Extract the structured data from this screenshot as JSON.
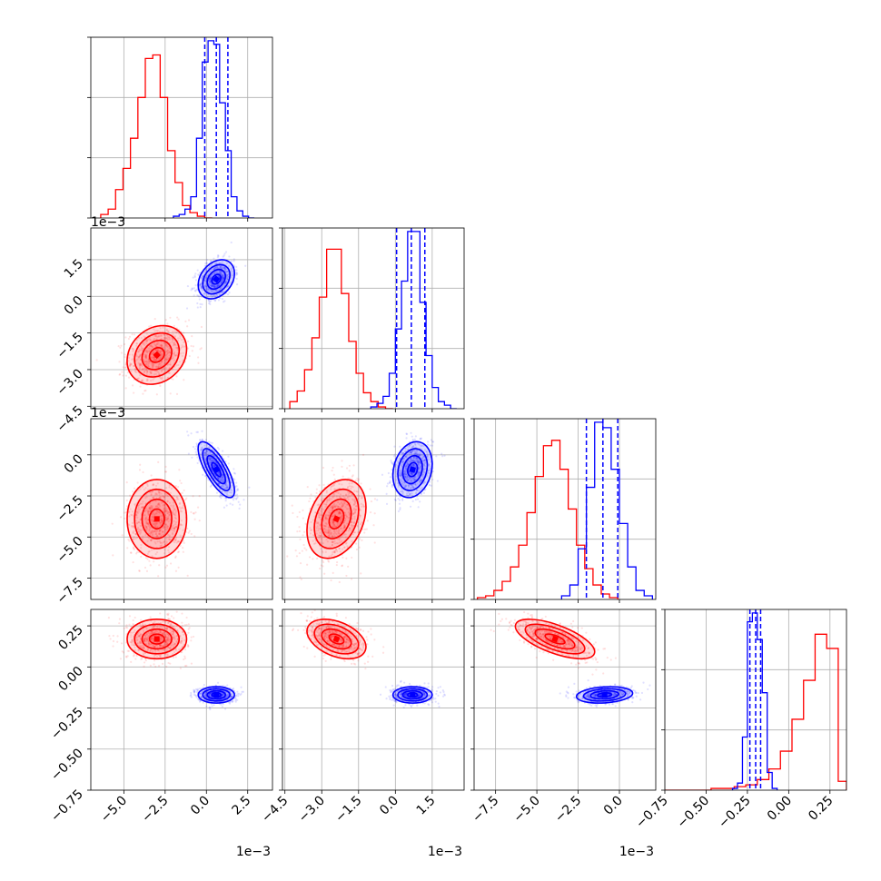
{
  "figure": {
    "type": "corner-plot",
    "params": [
      {
        "range": [
          -7.0,
          4.0
        ],
        "ticks": [
          -5.0,
          -2.5,
          0.0,
          2.5
        ],
        "tick_labels": [
          "−5.0",
          "−2.5",
          "0.0",
          "2.5"
        ],
        "offset_label": "1e−3"
      },
      {
        "range": [
          -4.6,
          2.8
        ],
        "ticks": [
          -4.5,
          -3.0,
          -1.5,
          0.0,
          1.5
        ],
        "tick_labels": [
          "−4.5",
          "−3.0",
          "−1.5",
          "0.0",
          "1.5"
        ],
        "offset_label": "1e−3"
      },
      {
        "range": [
          -8.8,
          2.2
        ],
        "ticks": [
          -7.5,
          -5.0,
          -2.5,
          0.0
        ],
        "tick_labels": [
          "−7.5",
          "−5.0",
          "−2.5",
          "0.0"
        ],
        "offset_label": "1e−3"
      },
      {
        "range": [
          -0.75,
          0.35
        ],
        "ticks": [
          -0.75,
          -0.5,
          -0.25,
          0.0,
          0.25
        ],
        "tick_labels": [
          "−0.75",
          "−0.50",
          "−0.25",
          "0.00",
          "0.25"
        ],
        "offset_label": ""
      }
    ],
    "series_colors": [
      "#ff0000",
      "#0000ff"
    ]
  },
  "chart_data": {
    "type": "corner",
    "series": [
      {
        "color": "#ff0000",
        "mean": [
          -3.0,
          -2.4,
          -3.9,
          0.17
        ],
        "sigma": [
          0.9,
          0.6,
          1.2,
          0.06
        ],
        "corr": [
          [
            0,
            0.2,
            0.0,
            0.0
          ],
          [
            0,
            0,
            0.3,
            -0.4
          ],
          [
            0,
            0,
            0,
            -0.65
          ]
        ],
        "hist": [
          {
            "edges": [
              -6.4,
              -5.95,
              -5.5,
              -5.05,
              -4.6,
              -4.15,
              -3.7,
              -3.25,
              -2.8,
              -2.35,
              -1.9,
              -1.45,
              -1.0,
              -0.55,
              -0.1,
              0.35
            ],
            "counts": [
              0.02,
              0.05,
              0.16,
              0.28,
              0.45,
              0.68,
              0.9,
              0.92,
              0.68,
              0.38,
              0.2,
              0.07,
              0.03,
              0.01,
              0.0
            ]
          },
          {
            "edges": [
              -4.3,
              -4.0,
              -3.7,
              -3.4,
              -3.1,
              -2.8,
              -2.5,
              -2.2,
              -1.9,
              -1.6,
              -1.3,
              -1.0,
              -0.7,
              -0.4,
              -0.1
            ],
            "counts": [
              0.04,
              0.1,
              0.22,
              0.4,
              0.63,
              0.9,
              0.9,
              0.65,
              0.38,
              0.2,
              0.09,
              0.04,
              0.01,
              0.0
            ]
          },
          {
            "edges": [
              -8.6,
              -8.1,
              -7.6,
              -7.1,
              -6.6,
              -6.1,
              -5.6,
              -5.1,
              -4.6,
              -4.1,
              -3.6,
              -3.1,
              -2.6,
              -2.1,
              -1.6,
              -1.1,
              -0.6,
              -0.1
            ],
            "counts": [
              0.01,
              0.02,
              0.05,
              0.1,
              0.18,
              0.3,
              0.48,
              0.68,
              0.85,
              0.88,
              0.72,
              0.5,
              0.3,
              0.17,
              0.08,
              0.03,
              0.01
            ]
          },
          {
            "edges": [
              -0.75,
              -0.68,
              -0.61,
              -0.54,
              -0.47,
              -0.4,
              -0.33,
              -0.26,
              -0.19,
              -0.12,
              -0.05,
              0.02,
              0.09,
              0.16,
              0.23,
              0.3,
              0.35
            ],
            "counts": [
              0.0,
              0.0,
              0.0,
              0.0,
              0.01,
              0.01,
              0.02,
              0.03,
              0.06,
              0.12,
              0.22,
              0.4,
              0.62,
              0.88,
              0.8,
              0.05
            ]
          }
        ]
      },
      {
        "color": "#0000ff",
        "mean": [
          0.6,
          0.7,
          -0.9,
          -0.17
        ],
        "sigma": [
          0.55,
          0.4,
          0.85,
          0.025
        ],
        "corr": [
          [
            0,
            0.3,
            -0.75,
            0.0
          ],
          [
            0,
            0,
            0.2,
            0.0
          ],
          [
            0,
            0,
            0,
            0.2
          ]
        ],
        "quantiles": [
          [
            -0.1,
            0.6,
            1.3
          ],
          [
            0.05,
            0.65,
            1.2
          ],
          [
            -2.0,
            -1.0,
            -0.1
          ],
          [
            -0.235,
            -0.2,
            -0.17
          ]
        ],
        "hist": [
          {
            "edges": [
              -2.0,
              -1.65,
              -1.3,
              -0.95,
              -0.6,
              -0.25,
              0.1,
              0.45,
              0.8,
              1.15,
              1.5,
              1.85,
              2.2,
              2.55,
              2.9
            ],
            "counts": [
              0.01,
              0.02,
              0.05,
              0.12,
              0.45,
              0.88,
              1.0,
              0.98,
              0.65,
              0.38,
              0.12,
              0.04,
              0.01,
              0.0
            ]
          },
          {
            "edges": [
              -1.0,
              -0.75,
              -0.5,
              -0.25,
              0.0,
              0.25,
              0.5,
              0.75,
              1.0,
              1.25,
              1.5,
              1.75,
              2.0,
              2.25,
              2.5
            ],
            "counts": [
              0.01,
              0.03,
              0.07,
              0.2,
              0.45,
              0.72,
              1.0,
              1.0,
              0.6,
              0.3,
              0.12,
              0.04,
              0.02,
              0.0
            ]
          },
          {
            "edges": [
              -3.5,
              -3.0,
              -2.5,
              -2.0,
              -1.5,
              -1.0,
              -0.5,
              0.0,
              0.5,
              1.0,
              1.5,
              2.0
            ],
            "counts": [
              0.02,
              0.08,
              0.28,
              0.62,
              0.98,
              0.95,
              0.72,
              0.42,
              0.18,
              0.05,
              0.02
            ]
          },
          {
            "edges": [
              -0.34,
              -0.31,
              -0.28,
              -0.25,
              -0.22,
              -0.19,
              -0.16,
              -0.13,
              -0.1,
              -0.07
            ],
            "counts": [
              0.01,
              0.04,
              0.3,
              0.95,
              1.0,
              0.85,
              0.55,
              0.1,
              0.01
            ]
          }
        ]
      }
    ]
  }
}
